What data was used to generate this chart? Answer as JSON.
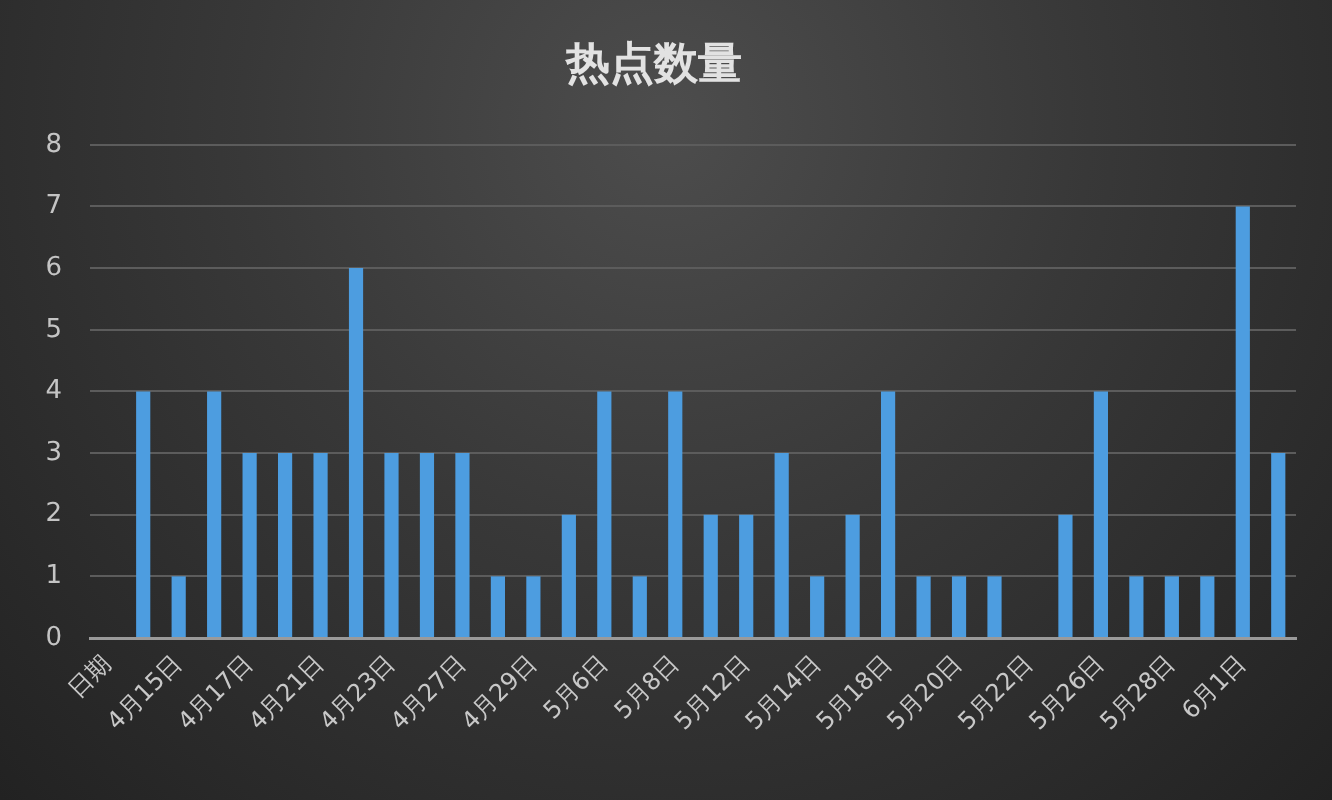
{
  "chart_data": {
    "type": "bar",
    "title": "热点数量",
    "categories": [
      "日期",
      null,
      "4月15日",
      null,
      "4月17日",
      null,
      "4月21日",
      null,
      "4月23日",
      null,
      "4月27日",
      null,
      "4月29日",
      null,
      "5月6日",
      null,
      "5月8日",
      null,
      "5月12日",
      null,
      "5月14日",
      null,
      "5月18日",
      null,
      "5月20日",
      null,
      "5月22日",
      null,
      "5月26日",
      null,
      "5月28日",
      null,
      "6月1日",
      null
    ],
    "values": [
      null,
      4,
      1,
      4,
      3,
      3,
      3,
      6,
      3,
      3,
      3,
      1,
      1,
      2,
      4,
      1,
      4,
      2,
      2,
      3,
      1,
      2,
      4,
      1,
      1,
      1,
      null,
      2,
      4,
      1,
      1,
      1,
      7,
      3
    ],
    "color": "#4d9de0",
    "ylim": [
      0,
      8
    ],
    "yticks": [
      0,
      1,
      2,
      3,
      4,
      5,
      6,
      7,
      8
    ],
    "grid": "y"
  }
}
